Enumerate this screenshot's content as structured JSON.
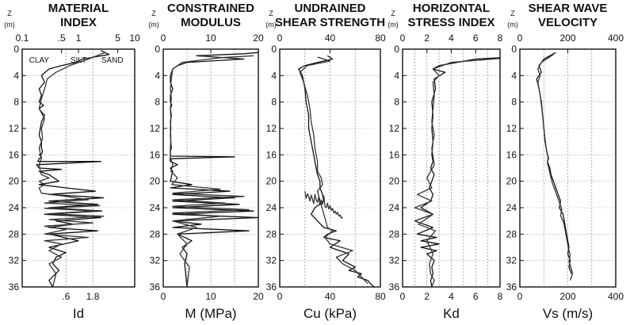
{
  "depth_axis": {
    "label": "Z",
    "unit": "(m)",
    "ticks": [
      "0",
      "4",
      "8",
      "12",
      "16",
      "20",
      "24",
      "28",
      "32",
      "36"
    ]
  },
  "chart_data": [
    {
      "type": "line",
      "title": [
        "MATERIAL",
        "INDEX"
      ],
      "xlabel": "Id",
      "ylabel": "Z (m)",
      "xscale": "log",
      "xlim": [
        0.1,
        10
      ],
      "ylim": [
        0,
        36
      ],
      "top_ticks": [
        "0.1",
        ".5",
        "1",
        "5",
        "10"
      ],
      "bottom_ticks": [
        ".6",
        "1.8"
      ],
      "zones": [
        "CLAY",
        "SILT",
        "SAND"
      ],
      "series": [
        {
          "x": [
            2.5,
            3.5,
            1.2,
            0.9,
            0.5,
            0.3,
            0.22,
            0.25,
            0.2,
            0.22,
            0.2,
            0.24,
            0.2,
            0.22,
            0.25,
            0.22,
            0.21,
            0.2,
            0.22,
            0.22,
            0.23,
            0.22,
            0.2,
            0.21,
            0.22,
            0.2,
            0.19,
            2.5,
            0.18,
            0.2,
            0.5,
            0.2,
            0.3,
            0.45,
            0.2,
            0.6,
            2.0,
            0.3,
            2.8,
            0.3,
            2.2,
            0.3,
            2.6,
            0.25,
            2.5,
            0.4,
            0.8,
            0.3,
            2.2,
            0.3,
            1.0,
            0.3,
            0.6,
            0.4,
            0.35,
            0.45,
            0.3,
            0.35
          ],
          "y": [
            0.2,
            0.8,
            1.5,
            2.0,
            2.5,
            3.0,
            4.0,
            5.0,
            6.0,
            7.0,
            8.0,
            8.5,
            9.0,
            9.5,
            10.0,
            11.0,
            12.0,
            13.0,
            14.0,
            15.0,
            15.5,
            15.9,
            16.0,
            16.1,
            16.3,
            16.6,
            17.0,
            17.0,
            17.5,
            18.0,
            18.2,
            18.5,
            19.0,
            20.0,
            20.5,
            21.0,
            21.5,
            22.0,
            22.5,
            23.0,
            23.5,
            24.0,
            24.5,
            25.0,
            25.5,
            26.0,
            26.5,
            27.0,
            27.5,
            28.0,
            29.0,
            30.0,
            30.8,
            31.5,
            32.5,
            33.5,
            35.0,
            36.0
          ]
        },
        {
          "x": [
            3.0,
            1.5,
            0.7,
            0.4,
            0.28,
            0.25,
            0.22,
            0.2,
            0.25,
            0.22,
            0.23,
            0.2,
            0.22,
            0.2,
            0.21,
            0.22,
            0.3,
            0.2,
            0.25,
            0.2,
            0.22,
            0.5,
            1.5,
            0.25,
            2.4,
            0.25,
            2.0,
            0.3,
            2.8,
            0.3,
            1.8,
            0.25,
            0.6,
            0.25,
            1.5,
            0.25,
            0.5,
            0.3,
            0.5,
            0.3,
            0.4,
            0.35
          ],
          "y": [
            0.5,
            1.5,
            2.5,
            3.5,
            4.5,
            6.0,
            7.5,
            9.0,
            10.5,
            12.0,
            13.5,
            15.0,
            16.5,
            17.5,
            18.5,
            19.0,
            19.5,
            20.0,
            20.5,
            21.0,
            21.8,
            22.2,
            22.8,
            23.3,
            23.7,
            24.1,
            24.5,
            24.9,
            25.3,
            25.8,
            26.3,
            26.8,
            27.3,
            28.0,
            28.5,
            29.0,
            29.5,
            30.5,
            31.5,
            32.5,
            34.0,
            36.0
          ]
        }
      ]
    },
    {
      "type": "line",
      "title": [
        "CONSTRAINED",
        "MODULUS"
      ],
      "xlabel": "M (MPa)",
      "ylabel": "Z (m)",
      "xlim": [
        0,
        20
      ],
      "ylim": [
        0,
        36
      ],
      "top_ticks": [
        "0",
        "10",
        "20"
      ],
      "bottom_ticks": [
        "0",
        "10",
        "20"
      ],
      "series": [
        {
          "x": [
            20,
            17,
            7,
            17,
            5,
            3,
            2,
            1.5,
            1.5,
            2,
            1.5,
            1.5,
            1.8,
            1.5,
            1.7,
            1.5,
            1.6,
            1.5,
            1.6,
            1.7,
            1.5,
            1.5,
            1.5,
            1.5,
            1.6,
            15.0,
            1.4,
            1.5,
            3.0,
            1.5,
            2.0,
            1.8,
            1.5,
            6.0,
            1.5,
            14.0,
            2.0,
            15.0,
            2.0,
            16.0,
            2.0,
            19.0,
            2.0,
            20.0,
            2.0,
            8.0,
            2.0,
            18.0,
            3.0,
            6.0,
            4.0,
            5.0,
            4.5,
            5.0
          ],
          "y": [
            0.5,
            0.7,
            1.0,
            1.5,
            2.0,
            2.5,
            3.0,
            4.0,
            5.0,
            6.0,
            7.0,
            8.0,
            8.5,
            9.0,
            10.0,
            11.0,
            12.0,
            13.0,
            14.0,
            15.0,
            15.5,
            15.8,
            16.0,
            16.1,
            16.2,
            16.3,
            16.6,
            17.0,
            17.5,
            18.0,
            18.5,
            19.0,
            20.0,
            20.5,
            21.0,
            21.5,
            22.0,
            22.5,
            23.0,
            23.5,
            24.0,
            24.5,
            25.0,
            25.5,
            26.0,
            26.5,
            27.0,
            27.5,
            28.0,
            29.0,
            30.0,
            31.0,
            32.5,
            36.0
          ]
        },
        {
          "x": [
            19,
            12,
            4,
            2,
            1.7,
            1.5,
            1.7,
            1.5,
            1.6,
            1.5,
            1.6,
            1.5,
            1.5,
            2.0,
            1.6,
            3.0,
            1.8,
            12.0,
            2.0,
            17.0,
            2.0,
            13.0,
            2.0,
            18.0,
            2.0,
            12.0,
            2.0,
            7.0,
            3.0,
            5.0,
            3.5,
            5.5,
            5.0
          ],
          "y": [
            1.0,
            1.3,
            2.0,
            3.0,
            4.5,
            6.0,
            7.5,
            9.0,
            10.5,
            12.0,
            13.5,
            15.0,
            16.5,
            17.5,
            18.5,
            19.5,
            20.5,
            21.2,
            21.8,
            22.3,
            22.8,
            23.3,
            23.8,
            24.3,
            24.8,
            25.3,
            26.0,
            27.0,
            28.0,
            29.5,
            31.0,
            33.0,
            36.0
          ]
        }
      ]
    },
    {
      "type": "line",
      "title": [
        "UNDRAINED",
        "SHEAR STRENGTH"
      ],
      "xlabel": "Cu (kPa)",
      "ylabel": "Z (m)",
      "xlim": [
        0,
        80
      ],
      "ylim": [
        0,
        36
      ],
      "top_ticks": [
        "0",
        "40",
        "80"
      ],
      "bottom_ticks": [
        "0",
        "40",
        "80"
      ],
      "series": [
        {
          "x": [
            38,
            42,
            30,
            20,
            15,
            18,
            20,
            21,
            23,
            23,
            25,
            26,
            27,
            28,
            29,
            30,
            32,
            32,
            34,
            35,
            28,
            25,
            30,
            35,
            45,
            38,
            35,
            48,
            40,
            55,
            50,
            60,
            55,
            65,
            62,
            70,
            72,
            75
          ],
          "y": [
            1.0,
            1.5,
            2.0,
            2.5,
            3.0,
            4.0,
            6.0,
            8.0,
            10.0,
            12.0,
            14.0,
            15.0,
            16.0,
            17.0,
            18.0,
            19.0,
            20.0,
            21.0,
            22.0,
            23.0,
            24.0,
            25.0,
            26.0,
            27.0,
            27.5,
            28.0,
            28.5,
            29.0,
            30.0,
            31.0,
            32.0,
            33.0,
            33.5,
            34.0,
            34.5,
            35.0,
            35.5,
            36.0
          ]
        },
        {
          "x": [
            30,
            40,
            22,
            16,
            19,
            22,
            24,
            25,
            27,
            28,
            30,
            30,
            33,
            34,
            30,
            38,
            42,
            36,
            40,
            58,
            45,
            50,
            60,
            65,
            70
          ],
          "y": [
            1.2,
            1.8,
            2.5,
            3.5,
            5.0,
            7.0,
            9.0,
            11.0,
            13.0,
            15.0,
            17.0,
            18.5,
            19.5,
            20.5,
            21.5,
            27.0,
            27.5,
            28.5,
            29.5,
            30.5,
            31.5,
            32.5,
            33.5,
            34.5,
            35.5
          ]
        },
        {
          "x": [
            20,
            21,
            22,
            23,
            24,
            25,
            26,
            27,
            28,
            29,
            30,
            31,
            32,
            33,
            34,
            35,
            36,
            37,
            38,
            39,
            40,
            41,
            42,
            43,
            44,
            45,
            46,
            47,
            48,
            49,
            50
          ],
          "y": [
            21.5,
            22.6,
            21.9,
            22.3,
            23.0,
            22.1,
            22.7,
            23.4,
            22.0,
            22.8,
            23.2,
            22.4,
            23.6,
            22.9,
            23.5,
            22.2,
            23.8,
            24.0,
            23.3,
            24.2,
            23.7,
            24.4,
            24.1,
            24.8,
            24.5,
            25.0,
            24.7,
            25.3,
            25.1,
            25.6,
            25.4
          ]
        }
      ]
    },
    {
      "type": "line",
      "title": [
        "HORIZONTAL",
        "STRESS INDEX"
      ],
      "xlabel": "Kd",
      "ylabel": "Z (m)",
      "xlim": [
        0,
        8
      ],
      "ylim": [
        0,
        36
      ],
      "top_ticks": [
        "0",
        "2",
        "4",
        "6",
        "8"
      ],
      "bottom_ticks": [
        "0",
        "2",
        "4",
        "6",
        "8"
      ],
      "series": [
        {
          "x": [
            8.0,
            6.0,
            3.0,
            2.5,
            3.5,
            2.6,
            2.7,
            2.4,
            2.5,
            2.4,
            2.5,
            2.4,
            2.5,
            2.3,
            2.6,
            2.4,
            2.2,
            2.5,
            2.3,
            1.5,
            2.5,
            1.0,
            2.5,
            1.2,
            2.8,
            1.5,
            3.0,
            1.5,
            2.8,
            2.0,
            2.6,
            2.4,
            2.5,
            2.3,
            2.4
          ],
          "y": [
            1.3,
            1.5,
            2.5,
            3.0,
            3.5,
            4.5,
            6.0,
            8.0,
            10.0,
            12.0,
            14.0,
            16.0,
            17.0,
            18.0,
            19.0,
            20.0,
            21.0,
            22.0,
            23.0,
            24.0,
            25.0,
            26.0,
            27.0,
            28.0,
            28.5,
            29.0,
            29.5,
            30.0,
            30.5,
            31.0,
            32.0,
            33.0,
            34.0,
            35.0,
            36.0
          ]
        },
        {
          "x": [
            8.0,
            4.0,
            2.5,
            3.0,
            2.5,
            2.6,
            2.5,
            2.4,
            2.6,
            2.4,
            2.6,
            2.0,
            2.4,
            1.2,
            2.4,
            1.0,
            2.5,
            1.3,
            2.7,
            2.0,
            2.5,
            2.2,
            2.3,
            2.6,
            2.4
          ],
          "y": [
            1.4,
            2.0,
            3.0,
            4.0,
            5.0,
            7.0,
            9.0,
            11.0,
            13.0,
            15.0,
            17.5,
            19.5,
            21.0,
            22.0,
            23.0,
            24.0,
            25.0,
            26.5,
            27.5,
            29.0,
            31.0,
            32.5,
            34.0,
            35.0,
            36.0
          ]
        }
      ]
    },
    {
      "type": "line",
      "title": [
        "SHEAR WAVE",
        "VELOCITY"
      ],
      "xlabel": "Vs (m/s)",
      "ylabel": "Z (m)",
      "xlim": [
        0,
        400
      ],
      "ylim": [
        0,
        36
      ],
      "top_ticks": [
        "0",
        "200",
        "400"
      ],
      "bottom_ticks": [
        "0",
        "200",
        "400"
      ],
      "series": [
        {
          "x": [
            150,
            100,
            80,
            90,
            70,
            80,
            90,
            95,
            100,
            105,
            110,
            115,
            120,
            115,
            125,
            130,
            140,
            150,
            160,
            170,
            165,
            180,
            185,
            190,
            195,
            200,
            205,
            200,
            210,
            205,
            215
          ],
          "y": [
            0.5,
            1.5,
            2.5,
            3.5,
            4.5,
            6.0,
            8.0,
            10.0,
            12.0,
            14.0,
            15.0,
            16.0,
            16.5,
            17.0,
            18.0,
            19.0,
            20.0,
            21.0,
            22.0,
            23.0,
            24.0,
            25.0,
            26.0,
            27.0,
            28.0,
            29.0,
            30.0,
            31.0,
            32.0,
            33.0,
            34.0
          ]
        },
        {
          "x": [
            140,
            90,
            75,
            85,
            75,
            85,
            92,
            98,
            103,
            108,
            112,
            118,
            115,
            122,
            128,
            135,
            145,
            155,
            165,
            175,
            170,
            182,
            188,
            193,
            198,
            203,
            210,
            205,
            215,
            220,
            210
          ],
          "y": [
            0.8,
            2.0,
            3.0,
            4.0,
            5.0,
            7.0,
            9.0,
            11.0,
            13.0,
            14.5,
            15.5,
            16.3,
            17.2,
            18.2,
            19.2,
            20.2,
            21.2,
            22.2,
            23.2,
            24.2,
            25.2,
            26.2,
            27.2,
            28.2,
            29.2,
            30.2,
            31.2,
            32.2,
            33.2,
            34.0,
            35.0
          ]
        }
      ]
    }
  ]
}
